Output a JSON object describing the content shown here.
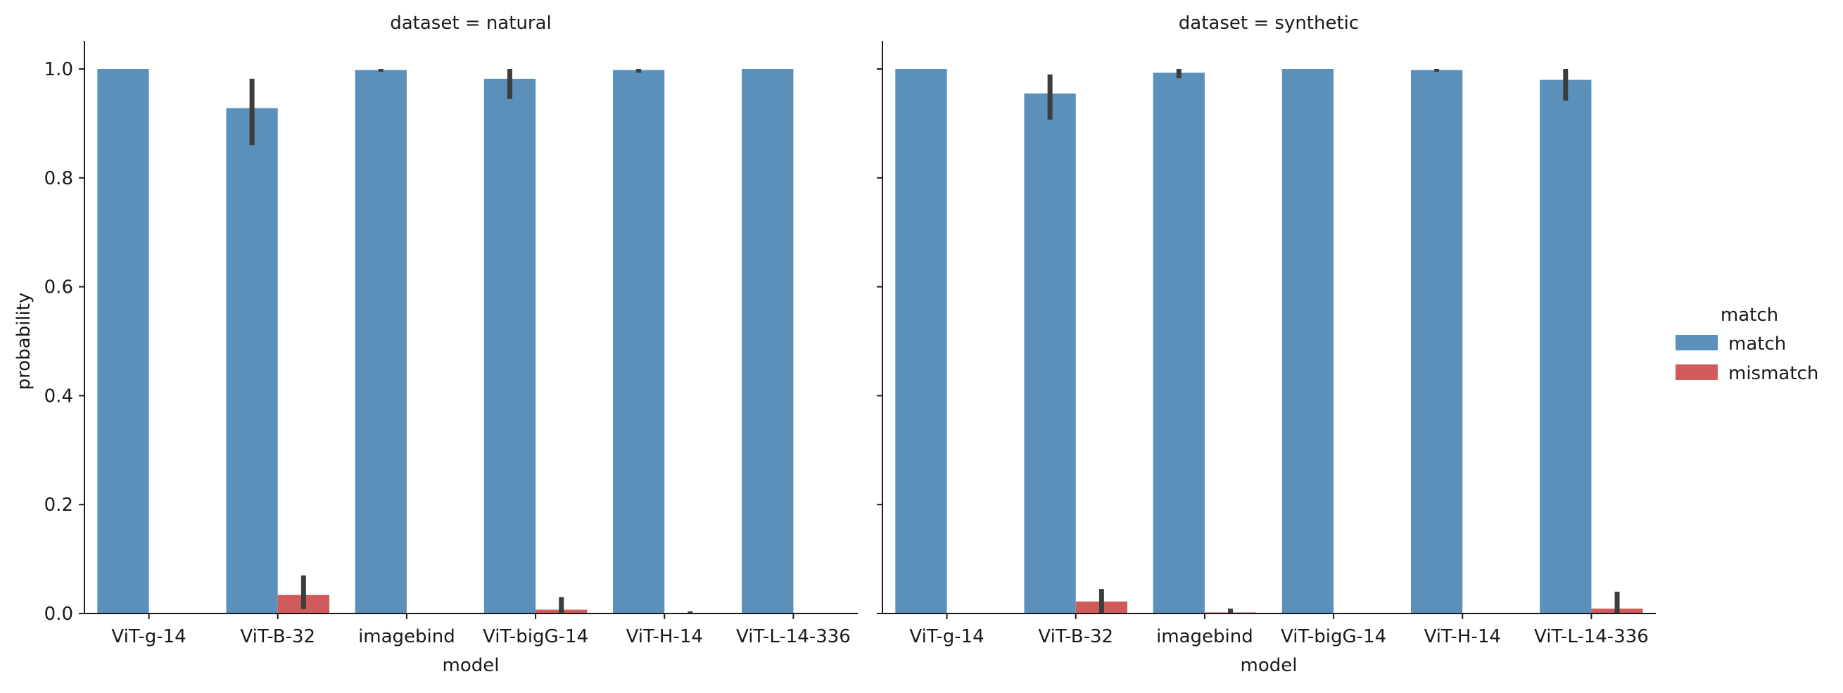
{
  "chart_data": {
    "type": "bar",
    "ylabel": "probability",
    "xlabel": "model",
    "ylim": [
      0,
      1.05
    ],
    "yticks": [
      "0.0",
      "0.2",
      "0.4",
      "0.6",
      "0.8",
      "1.0"
    ],
    "categories": [
      "ViT-g-14",
      "ViT-B-32",
      "imagebind",
      "ViT-bigG-14",
      "ViT-H-14",
      "ViT-L-14-336"
    ],
    "legend": {
      "title": "match",
      "position": "right",
      "entries": [
        "match",
        "mismatch"
      ]
    },
    "colors": {
      "match": "#5a90b9",
      "mismatch": "#d15b5b",
      "errorbar": "#3d3d3d"
    },
    "panels": [
      {
        "title": "dataset = natural",
        "series": [
          {
            "name": "match",
            "values": [
              1.0,
              0.928,
              0.998,
              0.982,
              0.998,
              1.0
            ],
            "err_low": [
              1.0,
              0.86,
              0.995,
              0.945,
              0.993,
              1.0
            ],
            "err_high": [
              1.0,
              0.982,
              1.0,
              1.0,
              1.0,
              1.0
            ]
          },
          {
            "name": "mismatch",
            "values": [
              0.0,
              0.034,
              0.0,
              0.007,
              0.001,
              0.0
            ],
            "err_low": [
              0.0,
              0.008,
              0.0,
              0.0,
              0.0,
              0.0
            ],
            "err_high": [
              0.0,
              0.07,
              0.0,
              0.03,
              0.004,
              0.0
            ]
          }
        ]
      },
      {
        "title": "dataset = synthetic",
        "series": [
          {
            "name": "match",
            "values": [
              1.0,
              0.955,
              0.993,
              1.0,
              0.998,
              0.98
            ],
            "err_low": [
              1.0,
              0.907,
              0.983,
              1.0,
              0.995,
              0.942
            ],
            "err_high": [
              1.0,
              0.99,
              1.0,
              1.0,
              1.0,
              1.0
            ]
          },
          {
            "name": "mismatch",
            "values": [
              0.0,
              0.022,
              0.002,
              0.0,
              0.0,
              0.009
            ],
            "err_low": [
              0.0,
              0.0,
              0.0,
              0.0,
              0.0,
              0.0
            ],
            "err_high": [
              0.0,
              0.045,
              0.009,
              0.0,
              0.0,
              0.04
            ]
          }
        ]
      }
    ]
  }
}
